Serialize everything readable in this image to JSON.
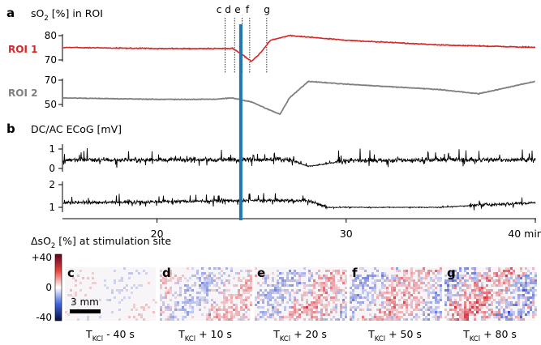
{
  "panel_a": {
    "letter": "a",
    "title": "sO",
    "title_sub": "2",
    "title_rest": " [%] in ROI",
    "markers": [
      "c",
      "d",
      "e",
      "f",
      "g"
    ],
    "roi1": {
      "label": "ROI 1",
      "color": "#d62728",
      "yticks": [
        "80",
        "70"
      ]
    },
    "roi2": {
      "label": "ROI 2",
      "color": "#7f7f7f",
      "yticks": [
        "70",
        "50"
      ]
    }
  },
  "panel_b": {
    "letter": "b",
    "title": "DC/AC ECoG [mV]",
    "ch1_yticks": [
      "1",
      "0"
    ],
    "ch2_yticks": [
      "2",
      "1"
    ],
    "xticks": [
      "20",
      "30",
      "40 min"
    ]
  },
  "stim_line_color": "#1f77b4",
  "maps": {
    "title_pre": "ΔsO",
    "title_sub": "2",
    "title_post": " [%] at stimulation site",
    "cbar_ticks": [
      "+40",
      "0",
      "-40"
    ],
    "scalebar_label": "3 mm",
    "panels": [
      {
        "letter": "c",
        "caption_pre": "T",
        "caption_sub": "KCl",
        "caption_post": " - 40 s",
        "intensity": 0.25
      },
      {
        "letter": "d",
        "caption_pre": "T",
        "caption_sub": "KCl",
        "caption_post": " + 10 s",
        "intensity": 0.55
      },
      {
        "letter": "e",
        "caption_pre": "T",
        "caption_sub": "KCl",
        "caption_post": " + 20 s",
        "intensity": 0.65
      },
      {
        "letter": "f",
        "caption_pre": "T",
        "caption_sub": "KCl",
        "caption_post": " + 50 s",
        "intensity": 0.7
      },
      {
        "letter": "g",
        "caption_pre": "T",
        "caption_sub": "KCl",
        "caption_post": " + 80 s",
        "intensity": 0.9
      }
    ]
  },
  "chart_data": [
    {
      "type": "line",
      "title": "sO2 [%] in ROI",
      "xlabel": "",
      "ylabel": "",
      "xlim": [
        15,
        40
      ],
      "series": [
        {
          "name": "ROI 1",
          "x": [
            15,
            20,
            23,
            24,
            24.5,
            25,
            25.5,
            26,
            27,
            30,
            35,
            40
          ],
          "y": [
            75,
            74.5,
            74.5,
            74.5,
            72,
            69,
            73,
            78,
            80,
            78,
            76,
            75
          ]
        },
        {
          "name": "ROI 2",
          "x": [
            15,
            20,
            23,
            24,
            25,
            26,
            26.5,
            27,
            28,
            30,
            35,
            37,
            40
          ],
          "y": [
            55,
            54,
            54,
            55,
            52,
            46,
            43,
            55,
            67,
            65,
            61,
            58,
            67
          ]
        }
      ],
      "ylim_roi1": [
        68,
        82
      ],
      "ylim_roi2": [
        42,
        72
      ],
      "markers_x": {
        "c": 23.6,
        "d": 24.1,
        "e": 24.5,
        "f": 24.9,
        "g": 25.8
      }
    },
    {
      "type": "line",
      "title": "DC/AC ECoG [mV]",
      "xlim": [
        15,
        40
      ],
      "xticks": [
        20,
        30,
        40
      ],
      "series": [
        {
          "name": "",
          "x": [
            15,
            20,
            24,
            27,
            28,
            29,
            30,
            35,
            40
          ],
          "y": [
            0.45,
            0.45,
            0.45,
            0.45,
            0.1,
            0.25,
            0.4,
            0.45,
            0.45
          ]
        },
        {
          "name": "",
          "x": [
            15,
            20,
            24,
            28,
            29,
            30,
            35,
            37,
            40
          ],
          "y": [
            1.2,
            1.25,
            1.3,
            1.3,
            1.0,
            1.0,
            1.0,
            1.1,
            1.2
          ]
        }
      ],
      "stimulation_x": 24
    }
  ]
}
